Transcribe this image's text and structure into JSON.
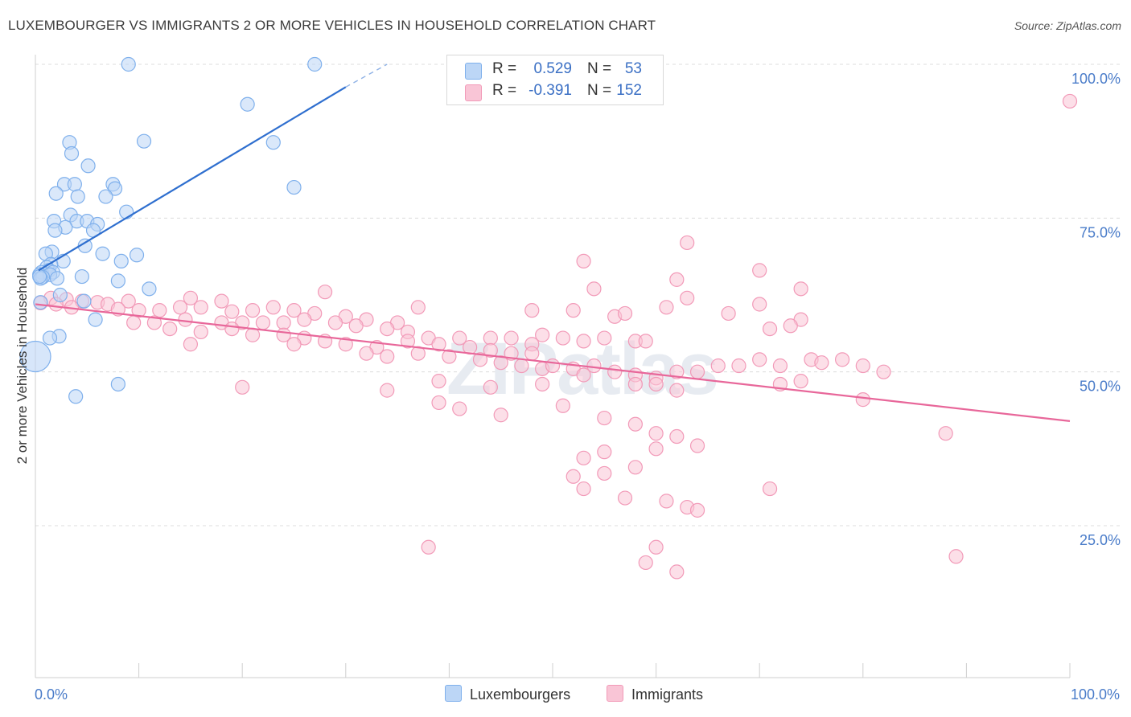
{
  "chart_data": {
    "type": "scatter",
    "title": "LUXEMBOURGER VS IMMIGRANTS 2 OR MORE VEHICLES IN HOUSEHOLD CORRELATION CHART",
    "source": "Source: ZipAtlas.com",
    "ylabel": "2 or more Vehicles in Household",
    "xlabel": "",
    "xlim": [
      0,
      100
    ],
    "ylim": [
      0,
      104
    ],
    "x_tick_labels": [
      "0.0%",
      "100.0%"
    ],
    "y_ticks": [
      {
        "value": 25,
        "label": "25.0%"
      },
      {
        "value": 50,
        "label": "50.0%"
      },
      {
        "value": 75,
        "label": "75.0%"
      },
      {
        "value": 100,
        "label": "100.0%"
      }
    ],
    "grid": "horizontal dashed",
    "watermark": "ZIPatlas",
    "series": [
      {
        "name": "Luxembourgers",
        "color": "#7fb0ec",
        "fill": "#bcd6f6",
        "R": "0.529",
        "N": "53",
        "trend": {
          "x1": 0.3,
          "y1": 66.5,
          "x2": 30,
          "y2": 96.3,
          "dash_to_x": 34,
          "dash_to_y": 100
        },
        "points": [
          [
            9,
            100
          ],
          [
            27,
            100
          ],
          [
            20.5,
            93.5
          ],
          [
            10.5,
            87.5
          ],
          [
            23,
            87.3
          ],
          [
            3.3,
            87.3
          ],
          [
            3.5,
            85.5
          ],
          [
            5.1,
            83.5
          ],
          [
            25,
            80
          ],
          [
            7.5,
            80.5
          ],
          [
            7.7,
            79.8
          ],
          [
            2.8,
            80.5
          ],
          [
            3.8,
            80.5
          ],
          [
            2,
            79
          ],
          [
            4.1,
            78.5
          ],
          [
            6.8,
            78.5
          ],
          [
            8.8,
            76
          ],
          [
            3.4,
            75.5
          ],
          [
            1.8,
            74.5
          ],
          [
            4,
            74.5
          ],
          [
            5,
            74.5
          ],
          [
            6,
            74
          ],
          [
            2.9,
            73.5
          ],
          [
            1.9,
            73
          ],
          [
            5.6,
            73
          ],
          [
            4.8,
            70.5
          ],
          [
            1.6,
            69.5
          ],
          [
            1,
            69.2
          ],
          [
            6.5,
            69.2
          ],
          [
            9.8,
            69
          ],
          [
            2.7,
            68
          ],
          [
            8.3,
            68
          ],
          [
            1.5,
            67.5
          ],
          [
            1.1,
            67
          ],
          [
            1.3,
            66.5
          ],
          [
            0.6,
            66.2
          ],
          [
            1.7,
            66.2
          ],
          [
            0.4,
            65.8
          ],
          [
            1.4,
            65.8
          ],
          [
            0.7,
            65.4
          ],
          [
            2.1,
            65.2
          ],
          [
            0.5,
            65.2
          ],
          [
            0.4,
            65.5
          ],
          [
            4.5,
            65.5
          ],
          [
            8,
            64.8
          ],
          [
            11,
            63.5
          ],
          [
            2.4,
            62.5
          ],
          [
            4.7,
            61.5
          ],
          [
            0.5,
            61.3
          ],
          [
            5.8,
            58.5
          ],
          [
            2.3,
            55.8
          ],
          [
            1.4,
            55.5
          ],
          [
            8,
            48
          ],
          [
            3.9,
            46
          ]
        ],
        "big_point": [
          0,
          52.5
        ]
      },
      {
        "name": "Immigrants",
        "color": "#f29ab8",
        "fill": "#f9c5d6",
        "R": "-0.391",
        "N": "152",
        "trend": {
          "x1": 0,
          "y1": 61,
          "x2": 100,
          "y2": 42
        },
        "points": [
          [
            100,
            94
          ],
          [
            63,
            71
          ],
          [
            53,
            68
          ],
          [
            70,
            66.5
          ],
          [
            62,
            65
          ],
          [
            54,
            63.5
          ],
          [
            74,
            63.5
          ],
          [
            28,
            63
          ],
          [
            63,
            62
          ],
          [
            15,
            62
          ],
          [
            18,
            61.5
          ],
          [
            9,
            61.5
          ],
          [
            1.5,
            62
          ],
          [
            3,
            61.8
          ],
          [
            4.5,
            61.5
          ],
          [
            6,
            61.3
          ],
          [
            2,
            61
          ],
          [
            7,
            61
          ],
          [
            0.5,
            61.2
          ],
          [
            3.5,
            60.5
          ],
          [
            8,
            60.2
          ],
          [
            10,
            60
          ],
          [
            12,
            60
          ],
          [
            14,
            60.5
          ],
          [
            16,
            60.5
          ],
          [
            19,
            59.8
          ],
          [
            21,
            60
          ],
          [
            23,
            60.5
          ],
          [
            25,
            60
          ],
          [
            27,
            59.5
          ],
          [
            30,
            59
          ],
          [
            32,
            58.5
          ],
          [
            35,
            58
          ],
          [
            37,
            60.5
          ],
          [
            48,
            60
          ],
          [
            52,
            60
          ],
          [
            56,
            59
          ],
          [
            57,
            59.5
          ],
          [
            61,
            60.5
          ],
          [
            67,
            59.5
          ],
          [
            70,
            61
          ],
          [
            74,
            58.5
          ],
          [
            73,
            57.5
          ],
          [
            71,
            57
          ],
          [
            9.5,
            58
          ],
          [
            11.5,
            58
          ],
          [
            14.5,
            58.5
          ],
          [
            18,
            58
          ],
          [
            20,
            58
          ],
          [
            22,
            58
          ],
          [
            24,
            58
          ],
          [
            26,
            58.5
          ],
          [
            29,
            58
          ],
          [
            31,
            57.5
          ],
          [
            34,
            57
          ],
          [
            36,
            56.5
          ],
          [
            38,
            55.5
          ],
          [
            41,
            55.5
          ],
          [
            44,
            55.5
          ],
          [
            46,
            55.5
          ],
          [
            48,
            54.5
          ],
          [
            49,
            56
          ],
          [
            51,
            55.5
          ],
          [
            53,
            55
          ],
          [
            55,
            55.5
          ],
          [
            58,
            55
          ],
          [
            59,
            55
          ],
          [
            13,
            57
          ],
          [
            16,
            56.5
          ],
          [
            24,
            56
          ],
          [
            26,
            55.5
          ],
          [
            28,
            55
          ],
          [
            30,
            54.5
          ],
          [
            33,
            54
          ],
          [
            36,
            55
          ],
          [
            39,
            54.5
          ],
          [
            42,
            54
          ],
          [
            44,
            53.5
          ],
          [
            46,
            53
          ],
          [
            48,
            53
          ],
          [
            15,
            54.5
          ],
          [
            19,
            57
          ],
          [
            21,
            56
          ],
          [
            25,
            54.5
          ],
          [
            32,
            53
          ],
          [
            34,
            52.5
          ],
          [
            37,
            53
          ],
          [
            40,
            52.5
          ],
          [
            43,
            52
          ],
          [
            45,
            51.5
          ],
          [
            47,
            51
          ],
          [
            49,
            50.5
          ],
          [
            50,
            51
          ],
          [
            52,
            50.5
          ],
          [
            54,
            51
          ],
          [
            56,
            50
          ],
          [
            58,
            49.5
          ],
          [
            60,
            49
          ],
          [
            62,
            50
          ],
          [
            64,
            50
          ],
          [
            66,
            51
          ],
          [
            68,
            51
          ],
          [
            70,
            52
          ],
          [
            72,
            51
          ],
          [
            75,
            52
          ],
          [
            76,
            51.5
          ],
          [
            78,
            52
          ],
          [
            80,
            51
          ],
          [
            82,
            50
          ],
          [
            74,
            48.5
          ],
          [
            72,
            48
          ],
          [
            20,
            47.5
          ],
          [
            34,
            47
          ],
          [
            39,
            48.5
          ],
          [
            44,
            47.5
          ],
          [
            49,
            48
          ],
          [
            53,
            49.5
          ],
          [
            58,
            48
          ],
          [
            60,
            48
          ],
          [
            62,
            47
          ],
          [
            80,
            45.5
          ],
          [
            39,
            45
          ],
          [
            41,
            44
          ],
          [
            45,
            43
          ],
          [
            51,
            44.5
          ],
          [
            55,
            42.5
          ],
          [
            58,
            41.5
          ],
          [
            60,
            40
          ],
          [
            62,
            39.5
          ],
          [
            64,
            38
          ],
          [
            60,
            37.5
          ],
          [
            55,
            37
          ],
          [
            53,
            36
          ],
          [
            58,
            34.5
          ],
          [
            55,
            33.5
          ],
          [
            52,
            33
          ],
          [
            53,
            31
          ],
          [
            71,
            31
          ],
          [
            61,
            29
          ],
          [
            63,
            28
          ],
          [
            64,
            27.5
          ],
          [
            57,
            29.5
          ],
          [
            88,
            40
          ],
          [
            38,
            21.5
          ],
          [
            60,
            21.5
          ],
          [
            59,
            19
          ],
          [
            62,
            17.5
          ],
          [
            89,
            20
          ]
        ]
      }
    ]
  }
}
